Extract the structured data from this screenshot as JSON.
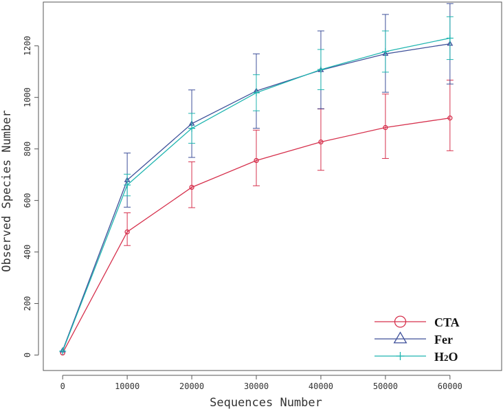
{
  "chart_data": {
    "type": "line",
    "xlabel": "Sequences Number",
    "ylabel": "Observed Species Number",
    "x": [
      0,
      10000,
      20000,
      30000,
      40000,
      50000,
      60000
    ],
    "x_ticks": [
      0,
      10000,
      20000,
      30000,
      40000,
      50000,
      60000
    ],
    "y_ticks": [
      0,
      200,
      400,
      600,
      800,
      1000,
      1200
    ],
    "xlim": [
      -3000,
      68000
    ],
    "ylim": [
      -60,
      1370
    ],
    "grid": false,
    "legend_position": "bottom-right",
    "series": [
      {
        "name": "CTA",
        "marker": "circle",
        "color": "#d6304c",
        "values": [
          8,
          478,
          651,
          755,
          827,
          883,
          920
        ],
        "error_low": [
          8,
          425,
          572,
          657,
          717,
          763,
          793
        ],
        "error_high": [
          8,
          552,
          750,
          873,
          955,
          1013,
          1067
        ]
      },
      {
        "name": "Fer",
        "marker": "triangle",
        "color": "#3d4f99",
        "values": [
          18,
          679,
          898,
          1025,
          1106,
          1169,
          1208
        ],
        "error_low": [
          18,
          574,
          767,
          880,
          956,
          1020,
          1052
        ],
        "error_high": [
          18,
          784,
          1029,
          1169,
          1258,
          1322,
          1364
        ]
      },
      {
        "name": "H2O",
        "marker": "plus",
        "color": "#1fb5b0",
        "values": [
          15,
          660,
          880,
          1018,
          1108,
          1178,
          1230
        ],
        "error_low": [
          15,
          618,
          822,
          948,
          1030,
          1098,
          1147
        ],
        "error_high": [
          15,
          702,
          938,
          1088,
          1186,
          1258,
          1313
        ]
      }
    ]
  }
}
